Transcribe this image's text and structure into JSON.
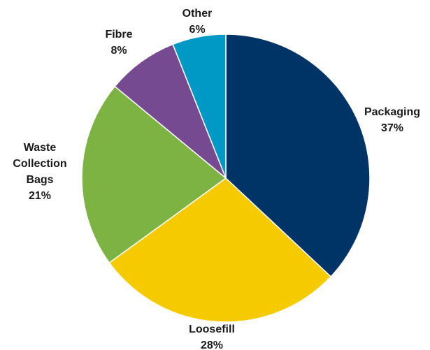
{
  "chart_data": {
    "type": "pie",
    "title": "",
    "slices": [
      {
        "label": [
          "Packaging"
        ],
        "pct_label": "37%",
        "value": 37,
        "color": "#003366"
      },
      {
        "label": [
          "Loosefill"
        ],
        "pct_label": "28%",
        "value": 28,
        "color": "#F5CB00"
      },
      {
        "label": [
          "Waste",
          "Collection",
          "Bags"
        ],
        "pct_label": "21%",
        "value": 21,
        "color": "#7CB342"
      },
      {
        "label": [
          "Fibre"
        ],
        "pct_label": "8%",
        "value": 8,
        "color": "#754A91"
      },
      {
        "label": [
          "Other"
        ],
        "pct_label": "6%",
        "value": 6,
        "color": "#0099C6"
      }
    ],
    "start_position": "12 o'clock",
    "direction": "clockwise",
    "legend": "none"
  }
}
